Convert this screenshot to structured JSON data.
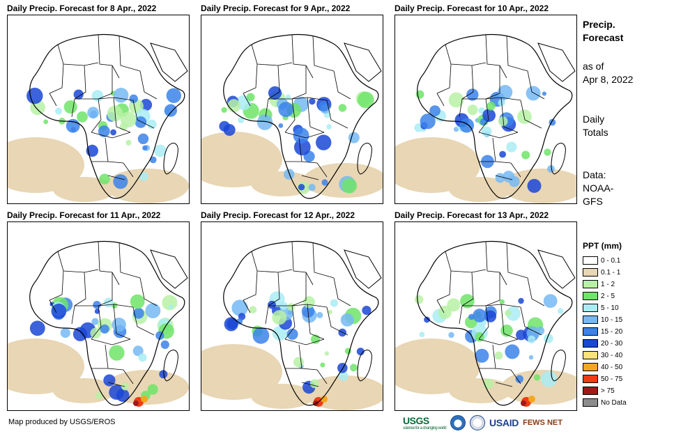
{
  "panels": [
    {
      "title": "Daily Precip. Forecast for 8 Apr., 2022"
    },
    {
      "title": "Daily Precip. Forecast for 9 Apr., 2022"
    },
    {
      "title": "Daily Precip. Forecast for 10 Apr., 2022"
    },
    {
      "title": "Daily Precip. Forecast for 11 Apr., 2022"
    },
    {
      "title": "Daily Precip. Forecast for 12 Apr., 2022"
    },
    {
      "title": "Daily Precip. Forecast for 13 Apr., 2022"
    }
  ],
  "sidebar": {
    "heading_line1": "Precip.",
    "heading_line2": "Forecast",
    "asof_line1": "as of",
    "asof_line2": "Apr 8, 2022",
    "totals_line1": "Daily",
    "totals_line2": "Totals",
    "data_line1": "Data:",
    "data_line2": "NOAA-",
    "data_line3": "GFS"
  },
  "legend": {
    "title": "PPT (mm)",
    "items": [
      {
        "label": "0 - 0.1",
        "color": "#ffffff"
      },
      {
        "label": "0.1 - 1",
        "color": "#e8d6b4"
      },
      {
        "label": "1 - 2",
        "color": "#b7f1a5"
      },
      {
        "label": "2 - 5",
        "color": "#6ee469"
      },
      {
        "label": "5 - 10",
        "color": "#a9ecf3"
      },
      {
        "label": "10 - 15",
        "color": "#76b8f3"
      },
      {
        "label": "15 - 20",
        "color": "#3b82ea"
      },
      {
        "label": "20 - 30",
        "color": "#1a47d6"
      },
      {
        "label": "30 - 40",
        "color": "#fbe27a"
      },
      {
        "label": "40 - 50",
        "color": "#f5a623"
      },
      {
        "label": "50 - 75",
        "color": "#ee3d12"
      },
      {
        "label": "> 75",
        "color": "#a01919"
      },
      {
        "label": "No Data",
        "color": "#8c8c8c"
      }
    ]
  },
  "footer": {
    "credit": "Map produced by USGS/EROS",
    "logo_usgs": "USGS",
    "logo_usgs_tagline": "science for a changing world",
    "logo_usaid": "USAID",
    "logo_fews": "FEWS NET"
  }
}
